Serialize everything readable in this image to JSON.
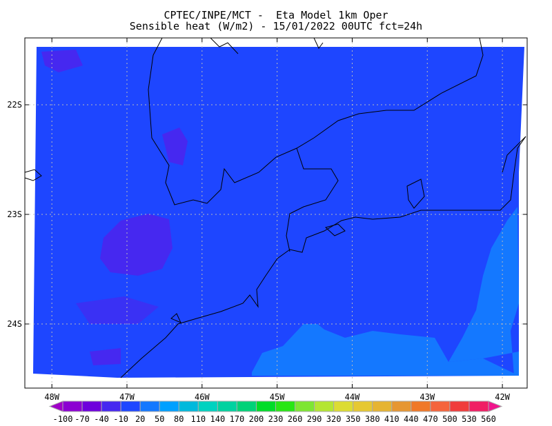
{
  "header": {
    "title_line1": "CPTEC/INPE/MCT -  Eta Model 1km Oper",
    "title_line2": "Sensible heat (W/m2) - 15/01/2022 00UTC fct=24h"
  },
  "map": {
    "lat_ticks": [
      {
        "value": -22,
        "label": "22S"
      },
      {
        "value": -23,
        "label": "23S"
      },
      {
        "value": -24,
        "label": "24S"
      }
    ],
    "lon_ticks": [
      {
        "value": -48,
        "label": "48W"
      },
      {
        "value": -47,
        "label": "47W"
      },
      {
        "value": -46,
        "label": "46W"
      },
      {
        "value": -45,
        "label": "45W"
      },
      {
        "value": -44,
        "label": "44W"
      },
      {
        "value": -43,
        "label": "43W"
      },
      {
        "value": -42,
        "label": "42W"
      }
    ],
    "extent": {
      "lon": [
        -48.36,
        -41.67
      ],
      "lat": [
        -24.585,
        -21.39
      ]
    },
    "gridlines": true,
    "field_colors": {
      "main": "#1e46ff",
      "low": "#4628f0",
      "high": "#1478ff"
    }
  },
  "colorbar": {
    "labels": [
      "-100",
      "-70",
      "-40",
      "-10",
      "20",
      "50",
      "80",
      "110",
      "140",
      "170",
      "200",
      "230",
      "260",
      "290",
      "320",
      "350",
      "380",
      "410",
      "440",
      "470",
      "500",
      "530",
      "560"
    ],
    "below_color": "#a000c8",
    "above_color": "#f0148c",
    "colors": [
      "#8c00d2",
      "#6e00dc",
      "#4628f0",
      "#1e46ff",
      "#1478ff",
      "#00a0ff",
      "#00b9dc",
      "#00d2c0",
      "#00d2a0",
      "#00d278",
      "#00dc28",
      "#28e614",
      "#7ee632",
      "#b4e632",
      "#dcdc32",
      "#e6c832",
      "#e6b432",
      "#e69632",
      "#f07828",
      "#f5643c",
      "#f03c3c",
      "#f01e64"
    ]
  }
}
